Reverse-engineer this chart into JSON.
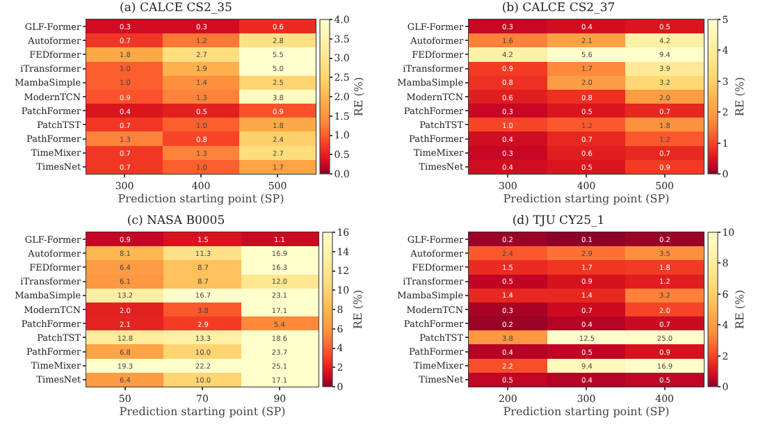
{
  "chart_data": [
    {
      "type": "heatmap",
      "title": "(a) CALCE CS2_35",
      "xlabel": "Prediction starting point (SP)",
      "clabel": "RE (%)",
      "categories": [
        "300",
        "400",
        "500"
      ],
      "y_categories": [
        "GLF-Former",
        "Autoformer",
        "FEDformer",
        "iTransformer",
        "MambaSimple",
        "ModernTCN",
        "PatchFormer",
        "PatchTST",
        "PathFormer",
        "TimeMixer",
        "TimesNet"
      ],
      "cells": [
        [
          0.3,
          0.3,
          0.6
        ],
        [
          0.7,
          1.2,
          2.8
        ],
        [
          1.8,
          2.7,
          5.5
        ],
        [
          1.0,
          1.9,
          5.0
        ],
        [
          1.0,
          1.4,
          2.5
        ],
        [
          0.9,
          1.3,
          3.8
        ],
        [
          0.4,
          0.5,
          0.9
        ],
        [
          0.7,
          1.0,
          1.8
        ],
        [
          1.3,
          0.8,
          2.4
        ],
        [
          0.7,
          1.3,
          2.7
        ],
        [
          0.7,
          1.0,
          1.7
        ]
      ],
      "cell_labels": [
        [
          "0.3",
          "0.3",
          "0.6"
        ],
        [
          "0.7",
          "1.2",
          "2.8"
        ],
        [
          "1.8",
          "2.7",
          "5.5"
        ],
        [
          "1.0",
          "1.9",
          "5.0"
        ],
        [
          "1.0",
          "1.4",
          "2.5"
        ],
        [
          "0.9",
          "1.3",
          "3.8"
        ],
        [
          "0.4",
          "0.5",
          "0.9"
        ],
        [
          "0.7",
          "1.0",
          "1.8"
        ],
        [
          "1.3",
          "0.8",
          "2.4"
        ],
        [
          "0.7",
          "1.3",
          "2.7"
        ],
        [
          "0.7",
          "1.0",
          "1.7"
        ]
      ],
      "clim": [
        0,
        4
      ],
      "cticks": [
        {
          "value": 0,
          "label": "0.0"
        },
        {
          "value": 0.5,
          "label": "0.5"
        },
        {
          "value": 1,
          "label": "1.0"
        },
        {
          "value": 1.5,
          "label": "1.5"
        },
        {
          "value": 2,
          "label": "2.0"
        },
        {
          "value": 2.5,
          "label": "2.5"
        },
        {
          "value": 3,
          "label": "3.0"
        },
        {
          "value": 3.5,
          "label": "3.5"
        },
        {
          "value": 4,
          "label": "4.0"
        }
      ],
      "data_labels": true
    },
    {
      "type": "heatmap",
      "title": "(b) CALCE CS2_37",
      "xlabel": "Prediction starting point (SP)",
      "clabel": "RE (%)",
      "categories": [
        "300",
        "400",
        "500"
      ],
      "y_categories": [
        "GLF-Former",
        "Autoformer",
        "FEDformer",
        "iTransformer",
        "MambaSimple",
        "ModernTCN",
        "PatchFormer",
        "PatchTST",
        "PathFormer",
        "TimeMixer",
        "TimesNet"
      ],
      "cells": [
        [
          0.3,
          0.4,
          0.5
        ],
        [
          1.6,
          2.1,
          4.2
        ],
        [
          4.2,
          5.6,
          9.4
        ],
        [
          0.9,
          1.7,
          3.9
        ],
        [
          0.8,
          2.0,
          3.2
        ],
        [
          0.6,
          0.8,
          2.0
        ],
        [
          0.3,
          0.5,
          0.7
        ],
        [
          1.0,
          1.2,
          1.8
        ],
        [
          0.4,
          0.7,
          1.2
        ],
        [
          0.3,
          0.6,
          0.7
        ],
        [
          0.4,
          0.5,
          0.9
        ]
      ],
      "cell_labels": [
        [
          "0.3",
          "0.4",
          "0.5"
        ],
        [
          "1.6",
          "2.1",
          "4.2"
        ],
        [
          "4.2",
          "5.6",
          "9.4"
        ],
        [
          "0.9",
          "1.7",
          "3.9"
        ],
        [
          "0.8",
          "2.0",
          "3.2"
        ],
        [
          "0.6",
          "0.8",
          "2.0"
        ],
        [
          "0.3",
          "0.5",
          "0.7"
        ],
        [
          "1.0",
          "1.2",
          "1.8"
        ],
        [
          "0.4",
          "0.7",
          "1.2"
        ],
        [
          "0.3",
          "0.6",
          "0.7"
        ],
        [
          "0.4",
          "0.5",
          "0.9"
        ]
      ],
      "clim": [
        0,
        5
      ],
      "cticks": [
        0,
        1,
        2,
        3,
        4,
        5
      ],
      "data_labels": true
    },
    {
      "type": "heatmap",
      "title": "(c) NASA B0005",
      "xlabel": "Prediction starting point (SP)",
      "clabel": "RE (%)",
      "categories": [
        "50",
        "70",
        "90"
      ],
      "y_categories": [
        "GLF-Former",
        "Autoformer",
        "FEDformer",
        "iTransformer",
        "MambaSimple",
        "ModernTCN",
        "PatchFormer",
        "PatchTST",
        "PathFormer",
        "TimeMixer",
        "TimesNet"
      ],
      "cells": [
        [
          0.9,
          1.5,
          1.1
        ],
        [
          8.1,
          11.3,
          16.9
        ],
        [
          6.4,
          8.7,
          16.3
        ],
        [
          6.1,
          8.7,
          12.0
        ],
        [
          13.2,
          16.7,
          23.1
        ],
        [
          2.0,
          3.8,
          17.1
        ],
        [
          2.1,
          2.9,
          5.4
        ],
        [
          12.8,
          13.3,
          18.6
        ],
        [
          6.8,
          10.0,
          23.7
        ],
        [
          19.3,
          22.2,
          25.1
        ],
        [
          6.4,
          10.0,
          17.1
        ]
      ],
      "cell_labels": [
        [
          "0.9",
          "1.5",
          "1.1"
        ],
        [
          "8.1",
          "11.3",
          "16.9"
        ],
        [
          "6.4",
          "8.7",
          "16.3"
        ],
        [
          "6.1",
          "8.7",
          "12.0"
        ],
        [
          "13.2",
          "16.7",
          "23.1"
        ],
        [
          "2.0",
          "3.8",
          "17.1"
        ],
        [
          "2.1",
          "2.9",
          "5.4"
        ],
        [
          "12.8",
          "13.3",
          "18.6"
        ],
        [
          "6.8",
          "10.0",
          "23.7"
        ],
        [
          "19.3",
          "22.2",
          "25.1"
        ],
        [
          "6.4",
          "10.0",
          "17.1"
        ]
      ],
      "clim": [
        0,
        16
      ],
      "cticks": [
        0,
        2,
        4,
        6,
        8,
        10,
        12,
        14,
        16
      ],
      "data_labels": true
    },
    {
      "type": "heatmap",
      "title": "(d) TJU CY25_1",
      "xlabel": "Prediction starting point (SP)",
      "clabel": "RE (%)",
      "categories": [
        "200",
        "300",
        "400"
      ],
      "y_categories": [
        "GLF-Former",
        "Autoformer",
        "FEDformer",
        "iTransformer",
        "MambaSimple",
        "ModernTCN",
        "PatchFormer",
        "PatchTST",
        "PathFormer",
        "TimeMixer",
        "TimesNet"
      ],
      "cells": [
        [
          0.2,
          0.1,
          0.2
        ],
        [
          2.4,
          2.9,
          3.5
        ],
        [
          1.5,
          1.7,
          1.8
        ],
        [
          0.5,
          0.9,
          1.2
        ],
        [
          1.4,
          1.4,
          3.2
        ],
        [
          0.3,
          0.7,
          2.0
        ],
        [
          0.2,
          0.4,
          0.7
        ],
        [
          3.8,
          12.5,
          25.0
        ],
        [
          0.4,
          0.5,
          0.9
        ],
        [
          2.2,
          9.4,
          16.9
        ],
        [
          0.5,
          0.4,
          0.5
        ]
      ],
      "cell_labels": [
        [
          "0.2",
          "0.1",
          "0.2"
        ],
        [
          "2.4",
          "2.9",
          "3.5"
        ],
        [
          "1.5",
          "1.7",
          "1.8"
        ],
        [
          "0.5",
          "0.9",
          "1.2"
        ],
        [
          "1.4",
          "1.4",
          "3.2"
        ],
        [
          "0.3",
          "0.7",
          "2.0"
        ],
        [
          "0.2",
          "0.4",
          "0.7"
        ],
        [
          "3.8",
          "12.5",
          "25.0"
        ],
        [
          "0.4",
          "0.5",
          "0.9"
        ],
        [
          "2.2",
          "9.4",
          "16.9"
        ],
        [
          "0.5",
          "0.4",
          "0.5"
        ]
      ],
      "clim": [
        0,
        10
      ],
      "cticks": [
        0,
        2,
        4,
        6,
        8,
        10
      ],
      "data_labels": true
    }
  ]
}
